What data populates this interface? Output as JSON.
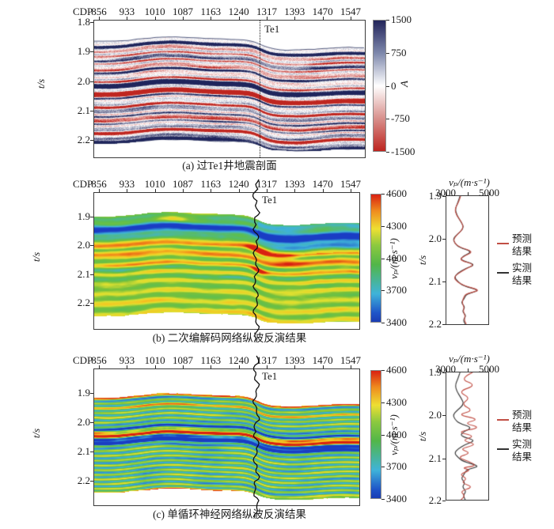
{
  "colors": {
    "predicted_red": "#c14e44",
    "measured_black": "#333333",
    "seismic_positive": "#1f255c",
    "seismic_negative": "#bf2620",
    "axis": "#3a3a3a"
  },
  "panel_a": {
    "cdp_label": "CDP",
    "cdp_ticks": [
      "856",
      "933",
      "1010",
      "1087",
      "1163",
      "1240",
      "1317",
      "1393",
      "1470",
      "1547"
    ],
    "t_ticks": [
      "1.8",
      "1.9",
      "2.0",
      "2.1",
      "2.2"
    ],
    "t_label": "t/s",
    "well_label": "Te1",
    "colorbar": {
      "ticks": [
        "1500",
        "750",
        "0",
        "-750",
        "-1500"
      ],
      "label": "A"
    },
    "caption": "(a) 过Te1井地震剖面"
  },
  "panel_b": {
    "cdp_label": "CDP",
    "cdp_ticks": [
      "856",
      "933",
      "1010",
      "1087",
      "1163",
      "1240",
      "1317",
      "1393",
      "1470",
      "1547"
    ],
    "t_ticks": [
      "1.9",
      "2.0",
      "2.1",
      "2.2"
    ],
    "t_label": "t/s",
    "well_label": "Te1",
    "colorbar": {
      "ticks": [
        "4600",
        "4300",
        "4000",
        "3700",
        "3400"
      ],
      "label": "vₚ/(m·s⁻¹)"
    },
    "caption": "(b) 二次编解码网络纵波反演结果",
    "side": {
      "title": "vₚ/(m·s⁻¹)",
      "x_ticks": [
        "3000",
        "5000"
      ],
      "t_ticks": [
        "1.9",
        "2.0",
        "2.1",
        "2.2"
      ],
      "t_label": "t/s",
      "legend": [
        {
          "label": "预测结果",
          "color": "#c14e44"
        },
        {
          "label": "实测结果",
          "color": "#333333"
        }
      ]
    }
  },
  "panel_c": {
    "cdp_label": "CDP",
    "cdp_ticks": [
      "856",
      "933",
      "1010",
      "1087",
      "1163",
      "1240",
      "1317",
      "1393",
      "1470",
      "1547"
    ],
    "t_ticks": [
      "1.9",
      "2.0",
      "2.1",
      "2.2"
    ],
    "t_label": "t/s",
    "well_label": "Te1",
    "colorbar": {
      "ticks": [
        "4600",
        "4300",
        "4000",
        "3700",
        "3400"
      ],
      "label": "vₚ/(m·s⁻¹)"
    },
    "caption": "(c) 单循环神经网络纵波反演结果",
    "side": {
      "title": "vₚ/(m·s⁻¹)",
      "x_ticks": [
        "3000",
        "5000"
      ],
      "t_ticks": [
        "1.9",
        "2.0",
        "2.1",
        "2.2"
      ],
      "t_label": "t/s",
      "legend": [
        {
          "label": "预测结果",
          "color": "#c14e44"
        },
        {
          "label": "实测结果",
          "color": "#333333"
        }
      ]
    }
  },
  "chart_data": [
    {
      "id": "a",
      "type": "heatmap",
      "caption": "(a) 过Te1井地震剖面",
      "x_axis": {
        "label": "CDP",
        "ticks": [
          856,
          933,
          1010,
          1087,
          1163,
          1240,
          1317,
          1393,
          1470,
          1547
        ]
      },
      "y_axis": {
        "label": "t/s",
        "ticks": [
          1.8,
          1.9,
          2.0,
          2.1,
          2.2
        ],
        "range": [
          1.8,
          2.26
        ]
      },
      "colorbar": {
        "label": "A",
        "range": [
          -1500,
          1500
        ],
        "ticks": [
          1500,
          750,
          0,
          -750,
          -1500
        ],
        "colormap": "dark-blue (positive) → white → red (negative)"
      },
      "well_marker": {
        "label": "Te1",
        "cdp": 1285,
        "style": "vertical dotted line"
      },
      "description": "Seismic amplitude section through well Te1: undulating layered reflectors between t≈1.88 and 2.25 s, a strong dark-blue event with a red event beneath it near t≈2.0–2.05 s, beds step down on the right side of the well."
    },
    {
      "id": "b",
      "type": "heatmap",
      "caption": "(b) 二次编解码网络纵波反演结果",
      "x_axis": {
        "label": "CDP",
        "ticks": [
          856,
          933,
          1010,
          1087,
          1163,
          1240,
          1317,
          1393,
          1470,
          1547
        ]
      },
      "y_axis": {
        "label": "t/s",
        "ticks": [
          1.9,
          2.0,
          2.1,
          2.2
        ],
        "range": [
          1.81,
          2.29
        ]
      },
      "colorbar": {
        "label": "vₚ/(m·s⁻¹)",
        "range": [
          3400,
          4600
        ],
        "ticks": [
          4600,
          4300,
          4000,
          3700,
          3400
        ],
        "colormap": "jet (blue → cyan → green → yellow → red)"
      },
      "well_marker": {
        "label": "Te1",
        "cdp": 1285,
        "style": "black well-log curve"
      },
      "description": "P-wave velocity inversion from the double encoder–decoder network: smooth thick layers, cyan/dark-blue low-velocity zone above t≈2.0 s, alternating yellow–orange high-velocity beds below, green background, red spots near the well."
    },
    {
      "id": "b_well",
      "type": "line",
      "title": "vₚ/(m·s⁻¹)",
      "x_axis": {
        "range": [
          3000,
          5000
        ],
        "ticks": [
          3000,
          5000
        ]
      },
      "y_axis": {
        "label": "t/s",
        "range": [
          1.9,
          2.2
        ],
        "ticks": [
          1.9,
          2.0,
          2.1,
          2.2
        ]
      },
      "legend_position": "right",
      "series": [
        {
          "name": "预测结果",
          "color": "#c14e44",
          "t": [
            1.9,
            1.915,
            1.93,
            1.945,
            1.96,
            1.975,
            1.99,
            2.0,
            2.01,
            2.02,
            2.03,
            2.04,
            2.05,
            2.06,
            2.07,
            2.08,
            2.09,
            2.1,
            2.11,
            2.12,
            2.125,
            2.13,
            2.14,
            2.15,
            2.16,
            2.17,
            2.18,
            2.19,
            2.2
          ],
          "v": [
            3680,
            3580,
            3400,
            3480,
            3720,
            3830,
            3520,
            3350,
            3380,
            3650,
            4300,
            3850,
            3600,
            4380,
            3950,
            3600,
            3350,
            3500,
            3850,
            4600,
            4250,
            3900,
            3800,
            3750,
            3850,
            3800,
            3900,
            3850,
            3950
          ]
        },
        {
          "name": "实测结果",
          "color": "#333333",
          "t": [
            1.9,
            1.915,
            1.93,
            1.945,
            1.96,
            1.975,
            1.99,
            2.0,
            2.01,
            2.02,
            2.03,
            2.04,
            2.05,
            2.06,
            2.07,
            2.08,
            2.09,
            2.1,
            2.11,
            2.12,
            2.125,
            2.13,
            2.14,
            2.15,
            2.16,
            2.17,
            2.18,
            2.19,
            2.2
          ],
          "v": [
            3650,
            3550,
            3420,
            3500,
            3700,
            3850,
            3500,
            3320,
            3400,
            3600,
            4250,
            3800,
            3650,
            4420,
            3900,
            3550,
            3380,
            3550,
            3800,
            4550,
            4300,
            3950,
            3850,
            3700,
            3900,
            3750,
            3950,
            3800,
            3900
          ]
        }
      ]
    },
    {
      "id": "c",
      "type": "heatmap",
      "caption": "(c) 单循环神经网络纵波反演结果",
      "x_axis": {
        "label": "CDP",
        "ticks": [
          856,
          933,
          1010,
          1087,
          1163,
          1240,
          1317,
          1393,
          1470,
          1547
        ]
      },
      "y_axis": {
        "label": "t/s",
        "ticks": [
          1.9,
          2.0,
          2.1,
          2.2
        ],
        "range": [
          1.82,
          2.29
        ]
      },
      "colorbar": {
        "label": "vₚ/(m·s⁻¹)",
        "range": [
          3400,
          4600
        ],
        "ticks": [
          4600,
          4300,
          4000,
          3700,
          3400
        ],
        "colormap": "jet (blue → cyan → green → yellow → red)"
      },
      "well_marker": {
        "label": "Te1",
        "cdp": 1285,
        "style": "black well-log curve"
      },
      "description": "P-wave velocity inversion from the single recurrent neural network: noisy thin green/cyan stripes with yellow streaks, a strong red high-velocity band with an adjacent dark-blue band near t≈2.02–2.06 s."
    },
    {
      "id": "c_well",
      "type": "line",
      "title": "vₚ/(m·s⁻¹)",
      "x_axis": {
        "range": [
          3000,
          5000
        ],
        "ticks": [
          3000,
          5000
        ]
      },
      "y_axis": {
        "label": "t/s",
        "range": [
          1.9,
          2.2
        ],
        "ticks": [
          1.9,
          2.0,
          2.1,
          2.2
        ]
      },
      "legend_position": "right",
      "series": [
        {
          "name": "预测结果",
          "color": "#c14e44",
          "t": [
            1.9,
            1.915,
            1.93,
            1.945,
            1.96,
            1.975,
            1.99,
            2.0,
            2.01,
            2.02,
            2.03,
            2.04,
            2.05,
            2.06,
            2.07,
            2.08,
            2.09,
            2.1,
            2.11,
            2.12,
            2.125,
            2.13,
            2.14,
            2.15,
            2.16,
            2.17,
            2.18,
            2.19,
            2.2
          ],
          "v": [
            4250,
            3600,
            4450,
            3550,
            4150,
            3700,
            4300,
            3500,
            4600,
            3800,
            4700,
            3450,
            4400,
            3700,
            4500,
            3600,
            4200,
            3500,
            4100,
            4450,
            3700,
            4200,
            3600,
            4000,
            3700,
            4300,
            3650,
            3900,
            3700
          ]
        },
        {
          "name": "实测结果",
          "color": "#333333",
          "t": [
            1.9,
            1.915,
            1.93,
            1.945,
            1.96,
            1.975,
            1.99,
            2.0,
            2.01,
            2.02,
            2.03,
            2.04,
            2.05,
            2.06,
            2.07,
            2.08,
            2.09,
            2.1,
            2.11,
            2.12,
            2.125,
            2.13,
            2.14,
            2.15,
            2.16,
            2.17,
            2.18,
            2.19,
            2.2
          ],
          "v": [
            3650,
            3550,
            3420,
            3500,
            3700,
            3850,
            3500,
            3320,
            3400,
            3600,
            4250,
            3800,
            3650,
            4420,
            3900,
            3550,
            3380,
            3550,
            3800,
            4550,
            4300,
            3950,
            3850,
            3700,
            3900,
            3750,
            3950,
            3800,
            3900
          ]
        }
      ]
    }
  ]
}
